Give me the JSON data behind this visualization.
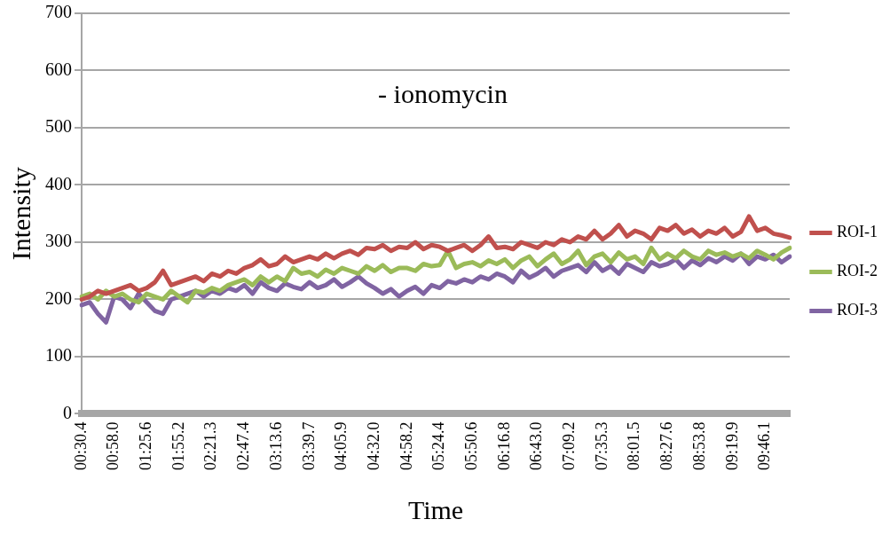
{
  "chart_data": {
    "type": "line",
    "title": "- ionomycin",
    "xlabel": "Time",
    "ylabel": "Intensity",
    "categories": [
      "00:30.4",
      null,
      null,
      null,
      "00:58.0",
      null,
      null,
      null,
      "01:25.6",
      null,
      null,
      null,
      "01:55.2",
      null,
      null,
      null,
      "02:21.3",
      null,
      null,
      null,
      "02:47.4",
      null,
      null,
      null,
      "03:13.6",
      null,
      null,
      null,
      "03:39.7",
      null,
      null,
      null,
      "04:05.9",
      null,
      null,
      null,
      "04:32.0",
      null,
      null,
      null,
      "04:58.2",
      null,
      null,
      null,
      "05:24.4",
      null,
      null,
      null,
      "05:50.6",
      null,
      null,
      null,
      "06:16.8",
      null,
      null,
      null,
      "06:43.0",
      null,
      null,
      null,
      "07:09.2",
      null,
      null,
      null,
      "07:35.3",
      null,
      null,
      null,
      "08:01.5",
      null,
      null,
      null,
      "08:27.6",
      null,
      null,
      null,
      "08:53.8",
      null,
      null,
      null,
      "09:19.9",
      null,
      null,
      null,
      "09:46.1",
      null,
      null,
      null
    ],
    "series": [
      {
        "name": "ROI-1",
        "color": "#c0504d",
        "values": [
          200,
          205,
          215,
          210,
          215,
          220,
          225,
          215,
          220,
          230,
          250,
          225,
          230,
          235,
          240,
          232,
          245,
          240,
          250,
          245,
          255,
          260,
          270,
          258,
          262,
          275,
          265,
          270,
          275,
          270,
          280,
          272,
          280,
          285,
          278,
          290,
          288,
          295,
          285,
          292,
          290,
          300,
          288,
          295,
          292,
          285,
          290,
          295,
          285,
          295,
          310,
          290,
          292,
          288,
          300,
          295,
          290,
          300,
          295,
          305,
          300,
          310,
          305,
          320,
          305,
          315,
          330,
          310,
          320,
          315,
          305,
          325,
          320,
          330,
          315,
          322,
          310,
          320,
          315,
          325,
          310,
          318,
          345,
          320,
          325,
          315,
          312,
          308
        ]
      },
      {
        "name": "ROI-2",
        "color": "#9bbb59",
        "values": [
          205,
          210,
          200,
          215,
          205,
          210,
          200,
          195,
          210,
          205,
          200,
          215,
          205,
          195,
          215,
          212,
          220,
          215,
          225,
          230,
          235,
          225,
          240,
          230,
          240,
          232,
          255,
          245,
          248,
          240,
          252,
          245,
          255,
          250,
          245,
          258,
          250,
          260,
          248,
          255,
          255,
          250,
          262,
          258,
          260,
          285,
          255,
          262,
          265,
          258,
          268,
          262,
          270,
          255,
          268,
          275,
          258,
          270,
          280,
          262,
          270,
          285,
          260,
          275,
          280,
          265,
          282,
          270,
          275,
          262,
          290,
          270,
          280,
          272,
          285,
          275,
          270,
          285,
          278,
          282,
          275,
          280,
          272,
          285,
          278,
          270,
          282,
          290
        ]
      },
      {
        "name": "ROI-3",
        "color": "#8064a2",
        "values": [
          190,
          195,
          175,
          160,
          205,
          200,
          185,
          210,
          195,
          180,
          175,
          200,
          205,
          210,
          215,
          205,
          215,
          210,
          220,
          215,
          225,
          210,
          230,
          220,
          215,
          228,
          222,
          218,
          230,
          220,
          225,
          235,
          222,
          230,
          240,
          228,
          220,
          210,
          218,
          205,
          215,
          222,
          210,
          225,
          220,
          232,
          228,
          235,
          230,
          240,
          235,
          245,
          240,
          230,
          250,
          238,
          245,
          255,
          240,
          250,
          255,
          260,
          248,
          265,
          250,
          258,
          245,
          262,
          255,
          248,
          265,
          258,
          262,
          270,
          255,
          268,
          260,
          272,
          265,
          275,
          268,
          280,
          262,
          275,
          270,
          278,
          265,
          275
        ]
      }
    ],
    "ylim": [
      0,
      700
    ],
    "yticks": [
      0,
      100,
      200,
      300,
      400,
      500,
      600,
      700
    ],
    "grid": "y",
    "legend": "right",
    "marker": "none",
    "line_style": "solid"
  }
}
